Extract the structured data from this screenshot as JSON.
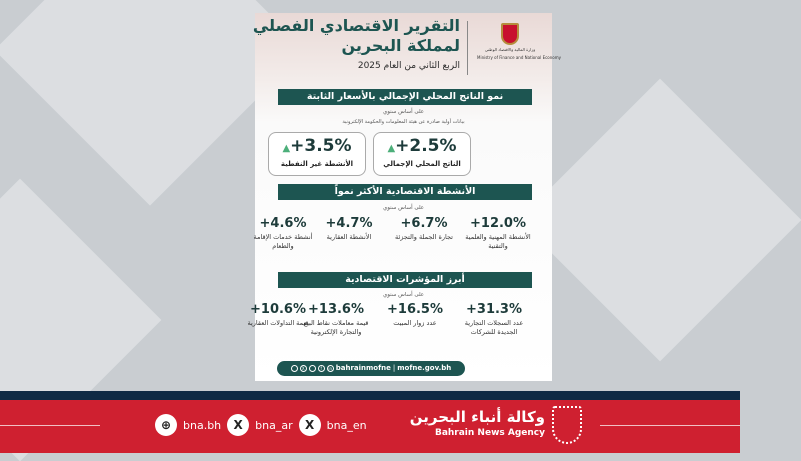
{
  "header": {
    "title_line1": "التقرير الاقتصادي الفصلي",
    "title_line2": "لمملكة البحرين",
    "subtitle": "الربع الثاني من العام 2025",
    "ministry": "وزارة المالية والاقتصاد الوطني",
    "ministry_en": "Ministry of Finance and National Economy"
  },
  "gdp": {
    "band": "نمو الناتج المحلي الإجمالي بالأسعار الثابتة",
    "basis": "على أساس سنوي",
    "source": "بيانات أولية صادرة عن هيئة المعلومات والحكومة الإلكترونية",
    "cards": [
      {
        "value": "+2.5%",
        "label": "الناتج المحلي الإجمالي"
      },
      {
        "value": "+3.5%",
        "label": "الأنشطة غير النفطية"
      }
    ]
  },
  "activities": {
    "band": "الأنشطة الاقتصادية الأكثر نمواً",
    "basis": "على أساس سنوي",
    "items": [
      {
        "value": "+12.0%",
        "label": "الأنشطة المهنية والعلمية والتقنية"
      },
      {
        "value": "+6.7%",
        "label": "تجارة الجملة والتجزئة"
      },
      {
        "value": "+4.7%",
        "label": "الأنشطة العقارية"
      },
      {
        "value": "+4.6%",
        "label": "أنشطة خدمات الإقامة والطعام"
      }
    ]
  },
  "indicators": {
    "band": "أبرز المؤشرات الاقتصادية",
    "basis": "على أساس سنوي",
    "items": [
      {
        "value": "+31.3%",
        "label": "عدد السجلات التجارية الجديدة للشركات"
      },
      {
        "value": "+16.5%",
        "label": "عدد زوار المبيت"
      },
      {
        "value": "+13.6%",
        "label": "قيمة معاملات نقاط البيع والتجارة الإلكترونية"
      },
      {
        "value": "+10.6%",
        "label": "قيمة التداولات العقارية"
      }
    ]
  },
  "footer": {
    "handle": "bahrainmofne",
    "site": "mofne.gov.bh"
  },
  "bna": {
    "site": "bna.bh",
    "x_ar": "bna_ar",
    "x_en": "bna_en",
    "name_ar": "وكالة أنباء البحرين",
    "name_en": "Bahrain News Agency"
  },
  "colors": {
    "teal": "#1d5551",
    "red": "#cf2030",
    "navy": "#0f2a44",
    "up": "#4caf7a"
  }
}
